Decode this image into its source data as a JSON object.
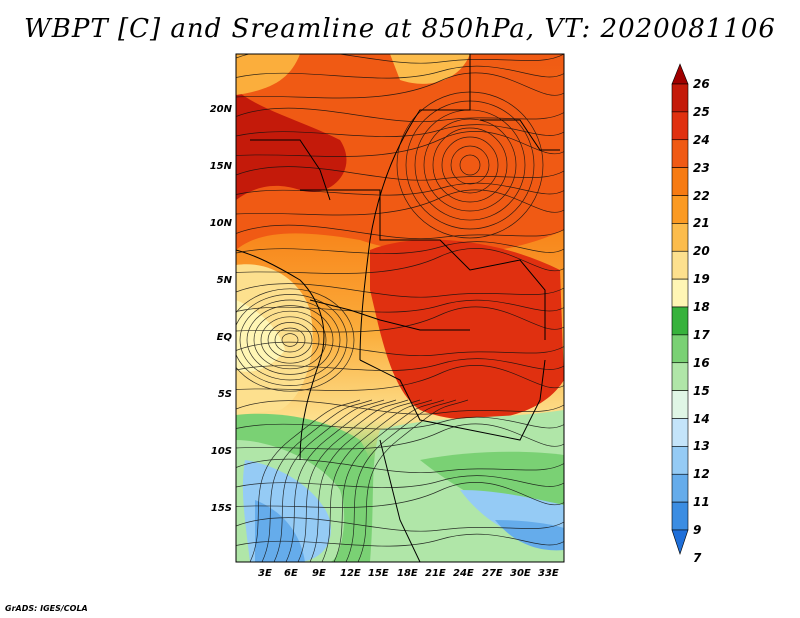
{
  "title": "WBPT [C] and Sreamline at 850hPa, VT: 2020081106",
  "footer": "GrADS: IGES/COLA",
  "map": {
    "projection": "latlon",
    "lat_ticks": [
      "20N",
      "15N",
      "10N",
      "5N",
      "EQ",
      "5S",
      "10S",
      "15S"
    ],
    "lon_ticks": [
      "3E",
      "6E",
      "9E",
      "12E",
      "15E",
      "18E",
      "21E",
      "24E",
      "27E",
      "30E",
      "33E"
    ],
    "field": "Wet-bulb potential temperature at 850hPa",
    "overlay": "Streamlines"
  },
  "colorbar": {
    "levels": [
      "26",
      "25",
      "24",
      "23",
      "22",
      "21",
      "20",
      "19",
      "18",
      "17",
      "16",
      "15",
      "14",
      "13",
      "12",
      "11",
      "9",
      "7"
    ],
    "colors": [
      "#a00000",
      "#c41a0a",
      "#e03010",
      "#f05a14",
      "#f77b12",
      "#fb9a22",
      "#fcbc4c",
      "#fde08e",
      "#fff6b5",
      "#37b23c",
      "#7ad174",
      "#b0e6a8",
      "#e0f6e6",
      "#c4e4fa",
      "#95cbf5",
      "#65aceb",
      "#3b8de2",
      "#1f6fd9"
    ]
  }
}
